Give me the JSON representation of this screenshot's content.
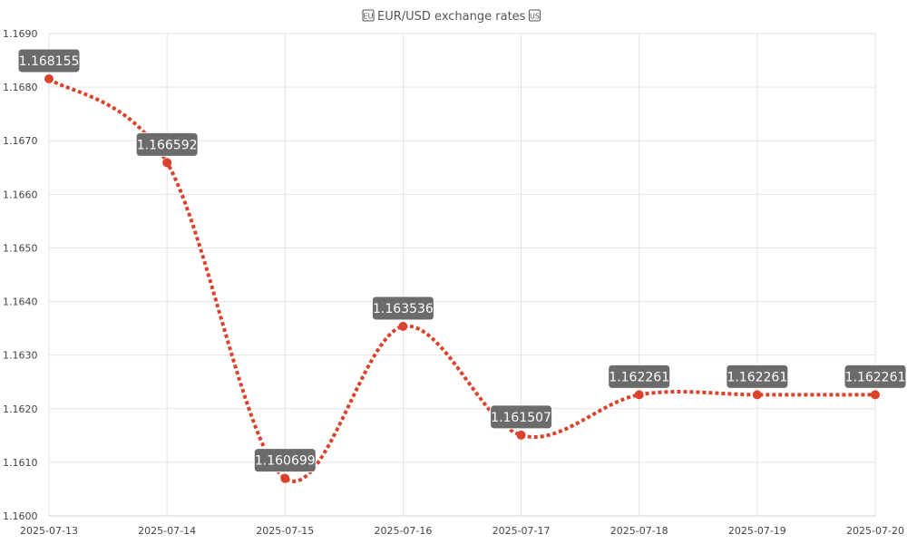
{
  "chart_data": {
    "type": "line",
    "title": "EUR/USD exchange rates",
    "title_icons": [
      "eu-flag-icon",
      "us-flag-icon"
    ],
    "x": [
      "2025-07-13",
      "2025-07-14",
      "2025-07-15",
      "2025-07-16",
      "2025-07-17",
      "2025-07-18",
      "2025-07-19",
      "2025-07-20"
    ],
    "series": [
      {
        "values": [
          1.168155,
          1.166592,
          1.160699,
          1.163536,
          1.161507,
          1.162261,
          1.162261,
          1.162261
        ],
        "data_labels": [
          "1.168155",
          "1.166592",
          "1.160699",
          "1.163536",
          "1.161507",
          "1.162261",
          "1.162261",
          "1.162261"
        ],
        "color": "#d9432b",
        "line_style": "dotted",
        "smooth": true
      }
    ],
    "ylim": [
      1.16,
      1.169
    ],
    "yticks": [
      "1.1600",
      "1.1610",
      "1.1620",
      "1.1630",
      "1.1640",
      "1.1650",
      "1.1660",
      "1.1670",
      "1.1680",
      "1.1690"
    ],
    "grid": true,
    "legend": "none"
  }
}
